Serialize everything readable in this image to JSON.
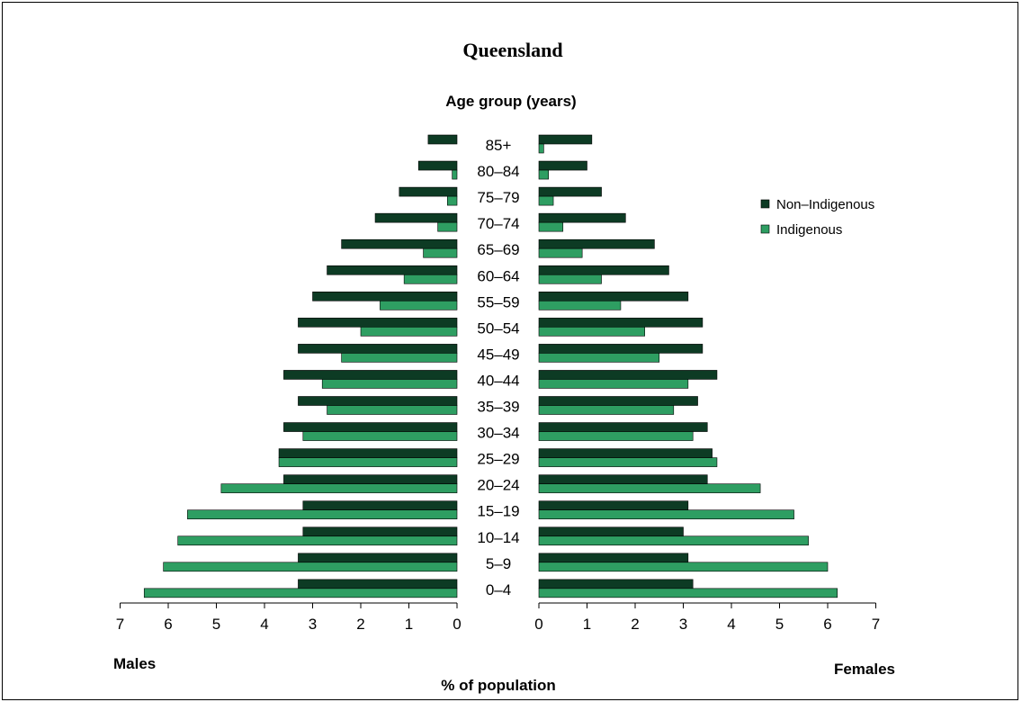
{
  "chart_data": {
    "type": "bar",
    "orientation": "horizontal-population-pyramid",
    "title": "Queensland",
    "subtitle": "Age group (years)",
    "xlabel": "% of population",
    "left_label": "Males",
    "right_label": "Females",
    "xlim": [
      0,
      7
    ],
    "ticks": [
      "0",
      "1",
      "2",
      "3",
      "4",
      "5",
      "6",
      "7"
    ],
    "categories": [
      "85+",
      "80–84",
      "75–79",
      "70–74",
      "65–69",
      "60–64",
      "55–59",
      "50–54",
      "45–49",
      "40–44",
      "35–39",
      "30–34",
      "25–29",
      "20–24",
      "15–19",
      "10–14",
      "5–9",
      "0–4"
    ],
    "series": [
      {
        "name": "Non–Indigenous",
        "color": "#0d3b24",
        "males": [
          0.6,
          0.8,
          1.2,
          1.7,
          2.4,
          2.7,
          3.0,
          3.3,
          3.3,
          3.6,
          3.3,
          3.6,
          3.7,
          3.6,
          3.2,
          3.2,
          3.3,
          3.3
        ],
        "females": [
          1.1,
          1.0,
          1.3,
          1.8,
          2.4,
          2.7,
          3.1,
          3.4,
          3.4,
          3.7,
          3.3,
          3.5,
          3.6,
          3.5,
          3.1,
          3.0,
          3.1,
          3.2
        ]
      },
      {
        "name": "Indigenous",
        "color": "#2e9e62",
        "males": [
          0.0,
          0.1,
          0.2,
          0.4,
          0.7,
          1.1,
          1.6,
          2.0,
          2.4,
          2.8,
          2.7,
          3.2,
          3.7,
          4.9,
          5.6,
          5.8,
          6.1,
          6.5
        ],
        "females": [
          0.1,
          0.2,
          0.3,
          0.5,
          0.9,
          1.3,
          1.7,
          2.2,
          2.5,
          3.1,
          2.8,
          3.2,
          3.7,
          4.6,
          5.3,
          5.6,
          6.0,
          6.2
        ]
      }
    ],
    "legend_position": "right"
  }
}
